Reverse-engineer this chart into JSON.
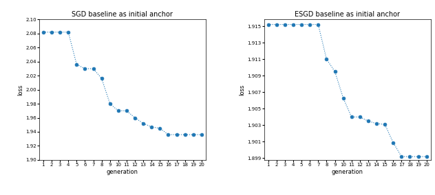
{
  "sgd_title": "SGD baseline as initial anchor",
  "esgd_title": "ESGD baseline as initial anchor",
  "xlabel": "generation",
  "ylabel": "loss",
  "sgd_x": [
    1,
    2,
    3,
    4,
    5,
    6,
    7,
    8,
    9,
    10,
    11,
    12,
    13,
    14,
    15,
    16,
    17,
    18,
    19,
    20
  ],
  "sgd_y": [
    2.082,
    2.082,
    2.082,
    2.082,
    2.036,
    2.03,
    2.03,
    2.016,
    1.98,
    1.97,
    1.97,
    1.96,
    1.952,
    1.947,
    1.945,
    1.936,
    1.936,
    1.936,
    1.936,
    1.936
  ],
  "esgd_x": [
    1,
    2,
    3,
    4,
    5,
    6,
    7,
    8,
    9,
    10,
    11,
    12,
    13,
    14,
    15,
    16,
    17,
    18,
    19,
    20
  ],
  "esgd_y": [
    1.9152,
    1.9152,
    1.9152,
    1.9152,
    1.9152,
    1.9152,
    1.9152,
    1.911,
    1.9095,
    1.9063,
    1.904,
    1.904,
    1.9035,
    1.9032,
    1.9031,
    1.9009,
    1.8992,
    1.8992,
    1.8992,
    1.8992
  ],
  "sgd_ylim": [
    1.9,
    2.1
  ],
  "esgd_ylim": [
    1.8988,
    1.9158
  ],
  "sgd_yticks": [
    1.9,
    1.92,
    1.94,
    1.96,
    1.98,
    2.0,
    2.02,
    2.04,
    2.06,
    2.08,
    2.1
  ],
  "esgd_yticks": [
    1.899,
    1.901,
    1.903,
    1.905,
    1.907,
    1.909,
    1.911,
    1.913,
    1.915
  ],
  "line_color": "#1f77b4",
  "dot_color": "#1f77b4",
  "bg_color": "#ffffff",
  "title_fontsize": 7,
  "label_fontsize": 6,
  "tick_fontsize": 5,
  "markersize": 3.5,
  "linewidth": 0.8
}
